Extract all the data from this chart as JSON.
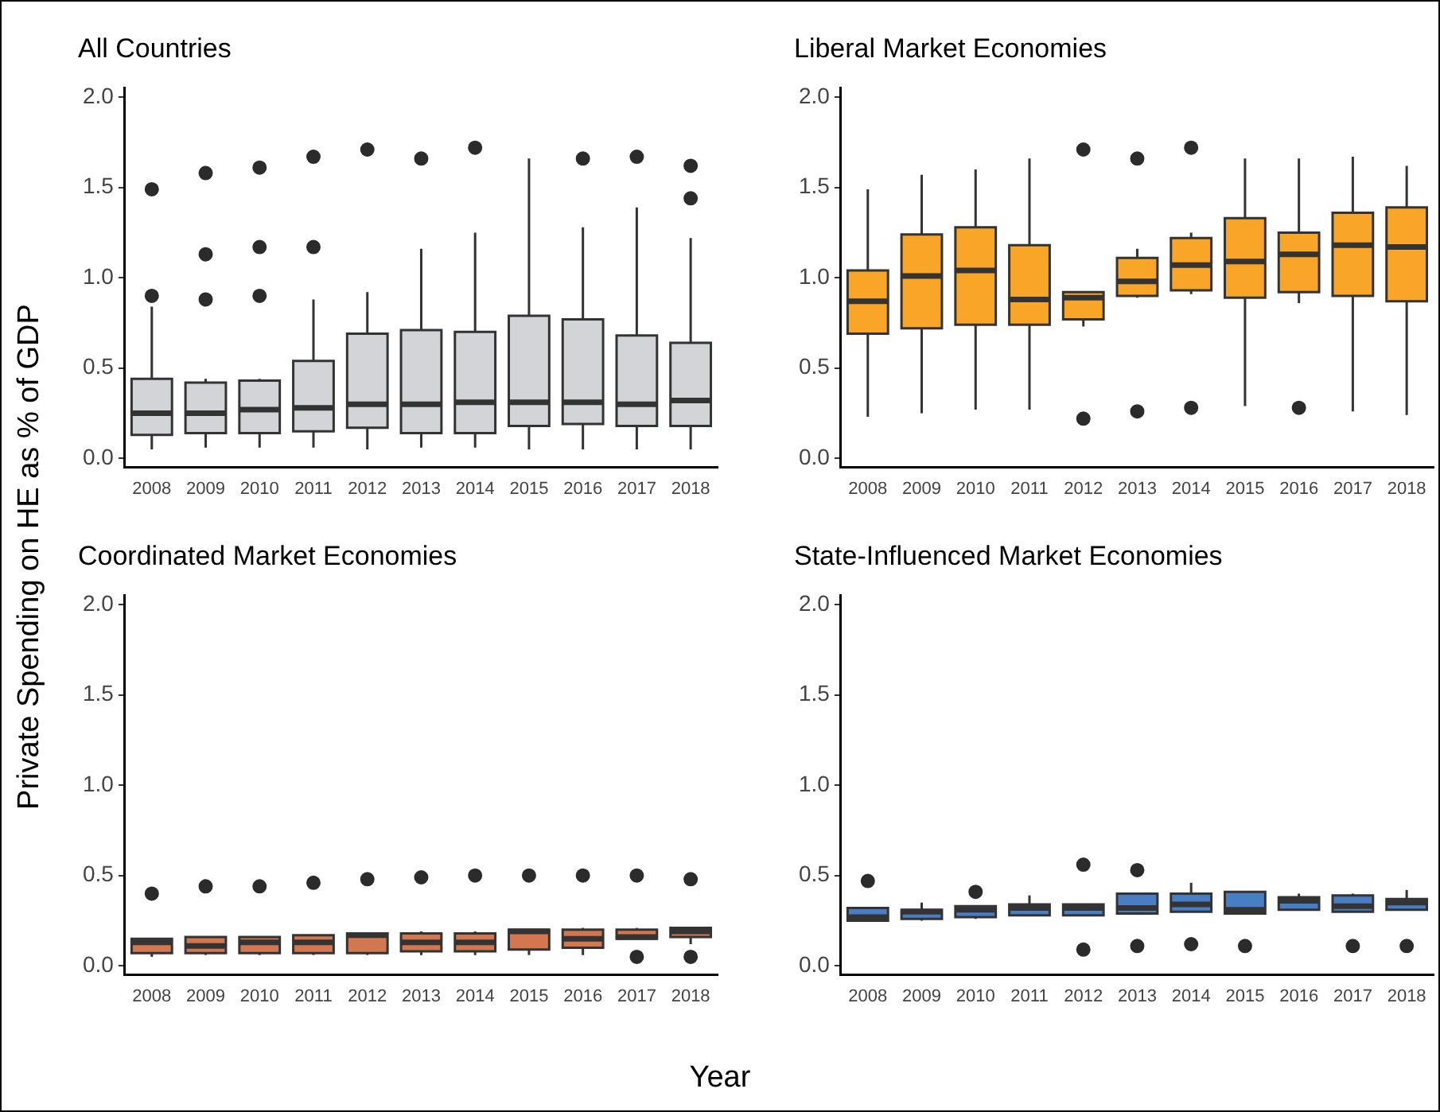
{
  "chart_data": [
    {
      "type": "box",
      "title": "All Countries",
      "ylabel": "Private Spending on HE as % of GDP",
      "categories": [
        "2008",
        "2009",
        "2010",
        "2011",
        "2012",
        "2013",
        "2014",
        "2015",
        "2016",
        "2017",
        "2018"
      ],
      "color": "#d3d4d8",
      "grid": false,
      "ylim": [
        -0.05,
        2.05
      ],
      "yticks": [
        {
          "value": 0,
          "label": "0.0"
        },
        {
          "value": 0.5,
          "label": "0.5"
        },
        {
          "value": 1,
          "label": "1.0"
        },
        {
          "value": 1.5,
          "label": "1.5"
        },
        {
          "value": 2,
          "label": "2.0"
        }
      ],
      "boxes": [
        {
          "low": 0.05,
          "q1": 0.13,
          "median": 0.25,
          "q3": 0.44,
          "high": 0.84,
          "outliers": [
            0.9,
            1.49
          ]
        },
        {
          "low": 0.06,
          "q1": 0.14,
          "median": 0.25,
          "q3": 0.42,
          "high": 0.44,
          "outliers": [
            0.88,
            1.13,
            1.58
          ]
        },
        {
          "low": 0.06,
          "q1": 0.14,
          "median": 0.27,
          "q3": 0.43,
          "high": 0.44,
          "outliers": [
            0.9,
            1.17,
            1.61
          ]
        },
        {
          "low": 0.06,
          "q1": 0.15,
          "median": 0.28,
          "q3": 0.54,
          "high": 0.88,
          "outliers": [
            1.17,
            1.67
          ]
        },
        {
          "low": 0.05,
          "q1": 0.17,
          "median": 0.3,
          "q3": 0.69,
          "high": 0.92,
          "outliers": [
            1.71
          ]
        },
        {
          "low": 0.06,
          "q1": 0.14,
          "median": 0.3,
          "q3": 0.71,
          "high": 1.16,
          "outliers": [
            1.66
          ]
        },
        {
          "low": 0.06,
          "q1": 0.14,
          "median": 0.31,
          "q3": 0.7,
          "high": 1.25,
          "outliers": [
            1.72
          ]
        },
        {
          "low": 0.05,
          "q1": 0.18,
          "median": 0.31,
          "q3": 0.79,
          "high": 1.66
        },
        {
          "low": 0.05,
          "q1": 0.19,
          "median": 0.31,
          "q3": 0.77,
          "high": 1.28,
          "outliers": [
            1.66
          ]
        },
        {
          "low": 0.05,
          "q1": 0.18,
          "median": 0.3,
          "q3": 0.68,
          "high": 1.39,
          "outliers": [
            1.67
          ]
        },
        {
          "low": 0.05,
          "q1": 0.18,
          "median": 0.32,
          "q3": 0.64,
          "high": 1.22,
          "outliers": [
            1.44,
            1.62
          ]
        }
      ]
    },
    {
      "type": "box",
      "title": "Liberal Market Economies",
      "categories": [
        "2008",
        "2009",
        "2010",
        "2011",
        "2012",
        "2013",
        "2014",
        "2015",
        "2016",
        "2017",
        "2018"
      ],
      "color": "#f9a527",
      "grid": false,
      "ylim": [
        -0.05,
        2.05
      ],
      "yticks": [
        {
          "value": 0,
          "label": "0.0"
        },
        {
          "value": 0.5,
          "label": "0.5"
        },
        {
          "value": 1,
          "label": "1.0"
        },
        {
          "value": 1.5,
          "label": "1.5"
        },
        {
          "value": 2,
          "label": "2.0"
        }
      ],
      "boxes": [
        {
          "low": 0.23,
          "q1": 0.69,
          "median": 0.87,
          "q3": 1.04,
          "high": 1.49
        },
        {
          "low": 0.25,
          "q1": 0.72,
          "median": 1.01,
          "q3": 1.24,
          "high": 1.57
        },
        {
          "low": 0.27,
          "q1": 0.74,
          "median": 1.04,
          "q3": 1.28,
          "high": 1.6
        },
        {
          "low": 0.27,
          "q1": 0.74,
          "median": 0.88,
          "q3": 1.18,
          "high": 1.66
        },
        {
          "low": 0.73,
          "q1": 0.77,
          "median": 0.89,
          "q3": 0.92,
          "high": 0.92,
          "outliers": [
            0.22,
            1.71
          ]
        },
        {
          "low": 0.89,
          "q1": 0.9,
          "median": 0.98,
          "q3": 1.11,
          "high": 1.16,
          "outliers": [
            0.26,
            1.66
          ]
        },
        {
          "low": 0.91,
          "q1": 0.93,
          "median": 1.07,
          "q3": 1.22,
          "high": 1.25,
          "outliers": [
            0.28,
            1.72
          ]
        },
        {
          "low": 0.29,
          "q1": 0.89,
          "median": 1.09,
          "q3": 1.33,
          "high": 1.66
        },
        {
          "low": 0.86,
          "q1": 0.92,
          "median": 1.13,
          "q3": 1.25,
          "high": 1.66,
          "outliers": [
            0.28
          ]
        },
        {
          "low": 0.26,
          "q1": 0.9,
          "median": 1.18,
          "q3": 1.36,
          "high": 1.67
        },
        {
          "low": 0.24,
          "q1": 0.87,
          "median": 1.17,
          "q3": 1.39,
          "high": 1.62
        }
      ]
    },
    {
      "type": "box",
      "title": "Coordinated Market Economies",
      "xlabel": "Year",
      "categories": [
        "2008",
        "2009",
        "2010",
        "2011",
        "2012",
        "2013",
        "2014",
        "2015",
        "2016",
        "2017",
        "2018"
      ],
      "color": "#d2774f",
      "grid": false,
      "ylim": [
        -0.05,
        2.05
      ],
      "yticks": [
        {
          "value": 0,
          "label": "0.0"
        },
        {
          "value": 0.5,
          "label": "0.5"
        },
        {
          "value": 1,
          "label": "1.0"
        },
        {
          "value": 1.5,
          "label": "1.5"
        },
        {
          "value": 2,
          "label": "2.0"
        }
      ],
      "boxes": [
        {
          "low": 0.05,
          "q1": 0.07,
          "median": 0.13,
          "q3": 0.15,
          "high": 0.15,
          "outliers": [
            0.4
          ]
        },
        {
          "low": 0.06,
          "q1": 0.07,
          "median": 0.11,
          "q3": 0.16,
          "high": 0.16,
          "outliers": [
            0.44
          ]
        },
        {
          "low": 0.06,
          "q1": 0.07,
          "median": 0.13,
          "q3": 0.16,
          "high": 0.16,
          "outliers": [
            0.44
          ]
        },
        {
          "low": 0.06,
          "q1": 0.07,
          "median": 0.13,
          "q3": 0.17,
          "high": 0.17,
          "outliers": [
            0.46
          ]
        },
        {
          "low": 0.06,
          "q1": 0.07,
          "median": 0.17,
          "q3": 0.18,
          "high": 0.18,
          "outliers": [
            0.48
          ]
        },
        {
          "low": 0.06,
          "q1": 0.08,
          "median": 0.13,
          "q3": 0.18,
          "high": 0.19,
          "outliers": [
            0.49
          ]
        },
        {
          "low": 0.06,
          "q1": 0.08,
          "median": 0.13,
          "q3": 0.18,
          "high": 0.19,
          "outliers": [
            0.5
          ]
        },
        {
          "low": 0.06,
          "q1": 0.09,
          "median": 0.19,
          "q3": 0.2,
          "high": 0.2,
          "outliers": [
            0.5
          ]
        },
        {
          "low": 0.06,
          "q1": 0.1,
          "median": 0.15,
          "q3": 0.2,
          "high": 0.21,
          "outliers": [
            0.5
          ]
        },
        {
          "low": 0.15,
          "q1": 0.15,
          "median": 0.16,
          "q3": 0.2,
          "high": 0.21,
          "outliers": [
            0.05,
            0.5
          ]
        },
        {
          "low": 0.12,
          "q1": 0.16,
          "median": 0.19,
          "q3": 0.21,
          "high": 0.21,
          "outliers": [
            0.05,
            0.48
          ]
        }
      ]
    },
    {
      "type": "box",
      "title": "State-Influenced Market Economies",
      "categories": [
        "2008",
        "2009",
        "2010",
        "2011",
        "2012",
        "2013",
        "2014",
        "2015",
        "2016",
        "2017",
        "2018"
      ],
      "color": "#4a7ec4",
      "grid": false,
      "ylim": [
        -0.05,
        2.05
      ],
      "yticks": [
        {
          "value": 0,
          "label": "0.0"
        },
        {
          "value": 0.5,
          "label": "0.5"
        },
        {
          "value": 1,
          "label": "1.0"
        },
        {
          "value": 1.5,
          "label": "1.5"
        },
        {
          "value": 2,
          "label": "2.0"
        }
      ],
      "boxes": [
        {
          "low": 0.25,
          "q1": 0.25,
          "median": 0.27,
          "q3": 0.32,
          "high": 0.32,
          "outliers": [
            0.47
          ]
        },
        {
          "low": 0.25,
          "q1": 0.26,
          "median": 0.3,
          "q3": 0.31,
          "high": 0.35
        },
        {
          "low": 0.26,
          "q1": 0.27,
          "median": 0.31,
          "q3": 0.33,
          "high": 0.33,
          "outliers": [
            0.41
          ]
        },
        {
          "low": 0.28,
          "q1": 0.28,
          "median": 0.32,
          "q3": 0.34,
          "high": 0.39
        },
        {
          "low": 0.28,
          "q1": 0.28,
          "median": 0.32,
          "q3": 0.34,
          "high": 0.34,
          "outliers": [
            0.09,
            0.56
          ]
        },
        {
          "low": 0.29,
          "q1": 0.29,
          "median": 0.32,
          "q3": 0.4,
          "high": 0.4,
          "outliers": [
            0.11,
            0.53
          ]
        },
        {
          "low": 0.3,
          "q1": 0.3,
          "median": 0.34,
          "q3": 0.4,
          "high": 0.46,
          "outliers": [
            0.12
          ]
        },
        {
          "low": 0.29,
          "q1": 0.29,
          "median": 0.31,
          "q3": 0.41,
          "high": 0.41,
          "outliers": [
            0.11
          ]
        },
        {
          "low": 0.31,
          "q1": 0.31,
          "median": 0.36,
          "q3": 0.38,
          "high": 0.4
        },
        {
          "low": 0.3,
          "q1": 0.3,
          "median": 0.33,
          "q3": 0.39,
          "high": 0.4,
          "outliers": [
            0.11
          ]
        },
        {
          "low": 0.31,
          "q1": 0.31,
          "median": 0.35,
          "q3": 0.37,
          "high": 0.42,
          "outliers": [
            0.11
          ]
        }
      ]
    }
  ]
}
